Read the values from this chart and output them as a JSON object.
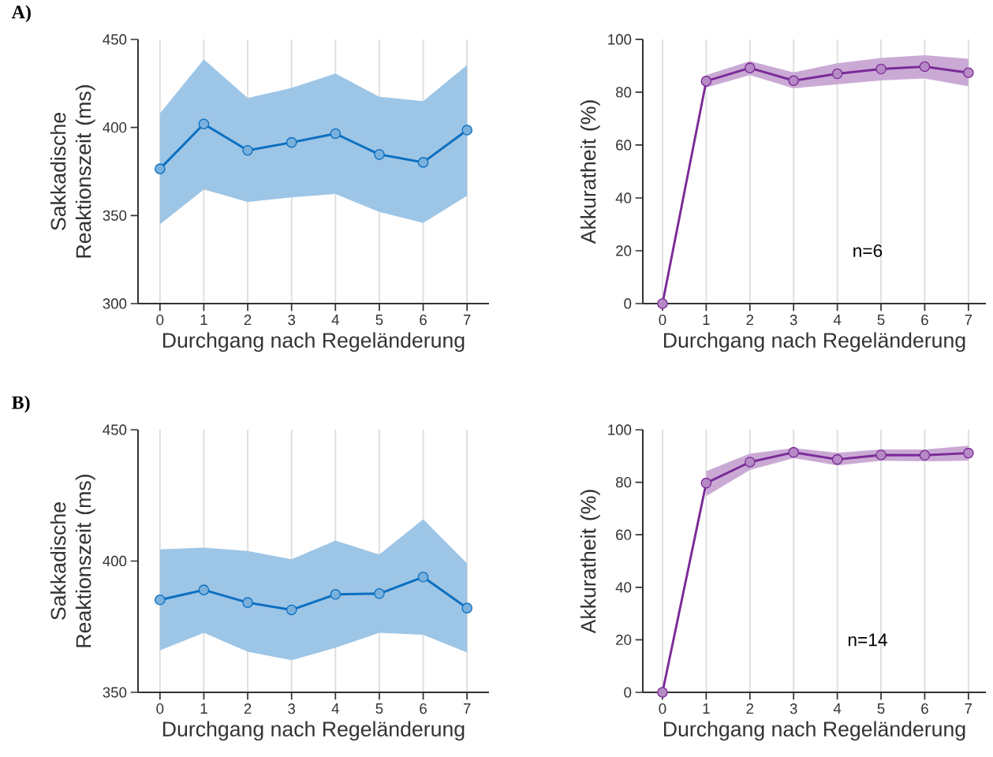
{
  "chart_data": [
    {
      "type": "line",
      "title": "A)",
      "ylabel": "Sakkadische Reaktionszeit (ms)",
      "xlabel": "Durchgang nach Regeländerung",
      "x": [
        0,
        1,
        2,
        3,
        4,
        5,
        6,
        7
      ],
      "xlim": [
        -0.5,
        7.5
      ],
      "xticks": [
        0,
        1,
        2,
        3,
        4,
        5,
        6,
        7
      ],
      "ylim": [
        300,
        450
      ],
      "yticks": [
        300,
        350,
        400,
        450
      ],
      "grid": "x",
      "marker": "circle",
      "series": [
        {
          "color": "#0b6fc0",
          "values": [
            376.5,
            402.0,
            387.0,
            391.5,
            396.5,
            384.7,
            380.2,
            398.5
          ],
          "upper": [
            408,
            438.7,
            416.8,
            422.5,
            430.6,
            417.4,
            415,
            435.4
          ],
          "lower": [
            345,
            364.8,
            357.7,
            360.3,
            362.2,
            352,
            345.8,
            361.2
          ]
        }
      ]
    },
    {
      "type": "line",
      "ylabel": "Akkuratheit (%)",
      "xlabel": "Durchgang nach Regeländerung",
      "x": [
        0,
        1,
        2,
        3,
        4,
        5,
        6,
        7
      ],
      "xlim": [
        -0.45,
        7.4
      ],
      "xticks": [
        0,
        1,
        2,
        3,
        4,
        5,
        6,
        7
      ],
      "ylim": [
        0,
        100
      ],
      "yticks": [
        0,
        20,
        40,
        60,
        80,
        100
      ],
      "grid": "x",
      "marker": "circle",
      "annotations": [
        "n=6"
      ],
      "series": [
        {
          "color": "#7b2b97",
          "values": [
            0,
            84.2,
            89.2,
            84.4,
            87,
            88.8,
            89.7,
            87.4
          ],
          "upper": [
            null,
            86.5,
            91.8,
            87.5,
            91,
            93,
            94,
            92.7
          ],
          "lower": [
            null,
            81.8,
            86.5,
            81.5,
            83,
            84.5,
            85.2,
            82.2
          ]
        }
      ]
    },
    {
      "type": "line",
      "title": "B)",
      "ylabel": "Sakkadische Reaktionszeit (ms)",
      "xlabel": "Durchgang nach Regeländerung",
      "x": [
        0,
        1,
        2,
        3,
        4,
        5,
        6,
        7
      ],
      "xlim": [
        -0.5,
        7.5
      ],
      "xticks": [
        0,
        1,
        2,
        3,
        4,
        5,
        6,
        7
      ],
      "ylim": [
        350,
        450
      ],
      "yticks": [
        350,
        400,
        450
      ],
      "grid": "x",
      "marker": "circle",
      "series": [
        {
          "color": "#0b6fc0",
          "values": [
            385.2,
            389,
            384.2,
            381.4,
            387.3,
            387.6,
            393.9,
            382.1
          ],
          "upper": [
            404.4,
            405.1,
            403.8,
            400.7,
            407.8,
            402.5,
            415.9,
            399.1
          ],
          "lower": [
            366,
            372.7,
            365.5,
            362.2,
            367,
            372.7,
            371.9,
            365.2
          ]
        }
      ]
    },
    {
      "type": "line",
      "ylabel": "Akkuratheit (%)",
      "xlabel": "Durchgang nach Regeländerung",
      "x": [
        0,
        1,
        2,
        3,
        4,
        5,
        6,
        7
      ],
      "xlim": [
        -0.45,
        7.4
      ],
      "xticks": [
        0,
        1,
        2,
        3,
        4,
        5,
        6,
        7
      ],
      "ylim": [
        0,
        100
      ],
      "yticks": [
        0,
        20,
        40,
        60,
        80,
        100
      ],
      "grid": "x",
      "marker": "circle",
      "annotations": [
        "n=14"
      ],
      "series": [
        {
          "color": "#7b2b97",
          "values": [
            0,
            79.7,
            87.7,
            91.4,
            88.7,
            90.4,
            90.3,
            91.1
          ],
          "upper": [
            null,
            84.2,
            90.9,
            93,
            91.2,
            92.5,
            92.5,
            93.9
          ],
          "lower": [
            null,
            74.7,
            84.7,
            89.2,
            86.4,
            88.2,
            88,
            88.2
          ]
        }
      ]
    }
  ]
}
